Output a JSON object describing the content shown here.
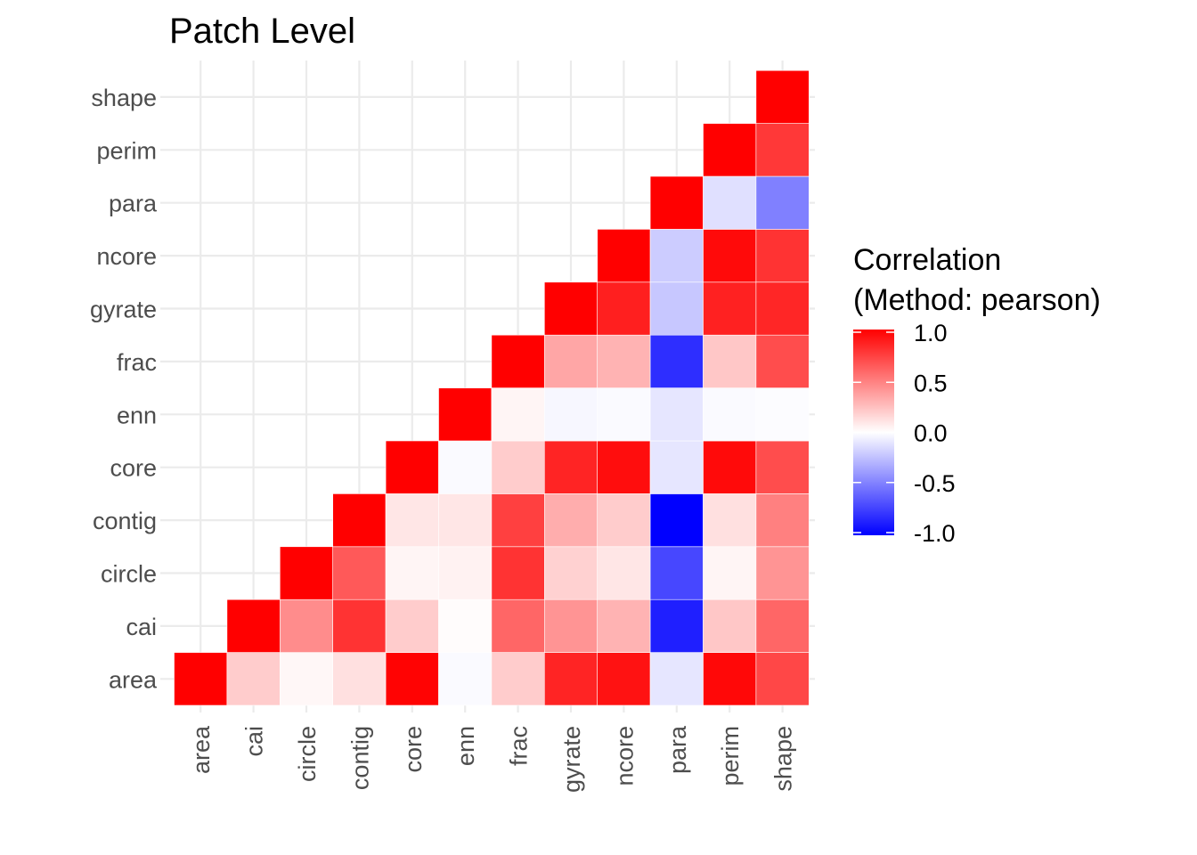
{
  "chart_data": {
    "type": "heatmap",
    "title": "Patch Level",
    "variables": [
      "area",
      "cai",
      "circle",
      "contig",
      "core",
      "enn",
      "frac",
      "gyrate",
      "ncore",
      "para",
      "perim",
      "shape"
    ],
    "x_categories": [
      "area",
      "cai",
      "circle",
      "contig",
      "core",
      "enn",
      "frac",
      "gyrate",
      "ncore",
      "para",
      "perim",
      "shape"
    ],
    "y_categories": [
      "area",
      "cai",
      "circle",
      "contig",
      "core",
      "enn",
      "frac",
      "gyrate",
      "ncore",
      "para",
      "perim",
      "shape"
    ],
    "triangle": "upper-left of diagonal shown (x >= y)",
    "cells": [
      {
        "x": "area",
        "y": "area",
        "value": 1.0
      },
      {
        "x": "cai",
        "y": "area",
        "value": 0.2
      },
      {
        "x": "circle",
        "y": "area",
        "value": 0.03
      },
      {
        "x": "contig",
        "y": "area",
        "value": 0.12
      },
      {
        "x": "core",
        "y": "area",
        "value": 0.99
      },
      {
        "x": "enn",
        "y": "area",
        "value": -0.02
      },
      {
        "x": "frac",
        "y": "area",
        "value": 0.2
      },
      {
        "x": "gyrate",
        "y": "area",
        "value": 0.86
      },
      {
        "x": "ncore",
        "y": "area",
        "value": 0.93
      },
      {
        "x": "para",
        "y": "area",
        "value": -0.1
      },
      {
        "x": "perim",
        "y": "area",
        "value": 0.97
      },
      {
        "x": "shape",
        "y": "area",
        "value": 0.72
      },
      {
        "x": "cai",
        "y": "cai",
        "value": 1.0
      },
      {
        "x": "circle",
        "y": "cai",
        "value": 0.45
      },
      {
        "x": "contig",
        "y": "cai",
        "value": 0.8
      },
      {
        "x": "core",
        "y": "cai",
        "value": 0.2
      },
      {
        "x": "enn",
        "y": "cai",
        "value": 0.01
      },
      {
        "x": "frac",
        "y": "cai",
        "value": 0.6
      },
      {
        "x": "gyrate",
        "y": "cai",
        "value": 0.42
      },
      {
        "x": "ncore",
        "y": "cai",
        "value": 0.3
      },
      {
        "x": "para",
        "y": "cai",
        "value": -0.88
      },
      {
        "x": "perim",
        "y": "cai",
        "value": 0.22
      },
      {
        "x": "shape",
        "y": "cai",
        "value": 0.6
      },
      {
        "x": "circle",
        "y": "circle",
        "value": 1.0
      },
      {
        "x": "contig",
        "y": "circle",
        "value": 0.65
      },
      {
        "x": "core",
        "y": "circle",
        "value": 0.04
      },
      {
        "x": "enn",
        "y": "circle",
        "value": 0.05
      },
      {
        "x": "frac",
        "y": "circle",
        "value": 0.8
      },
      {
        "x": "gyrate",
        "y": "circle",
        "value": 0.18
      },
      {
        "x": "ncore",
        "y": "circle",
        "value": 0.1
      },
      {
        "x": "para",
        "y": "circle",
        "value": -0.72
      },
      {
        "x": "perim",
        "y": "circle",
        "value": 0.04
      },
      {
        "x": "shape",
        "y": "circle",
        "value": 0.42
      },
      {
        "x": "contig",
        "y": "contig",
        "value": 1.0
      },
      {
        "x": "core",
        "y": "contig",
        "value": 0.1
      },
      {
        "x": "enn",
        "y": "contig",
        "value": 0.1
      },
      {
        "x": "frac",
        "y": "contig",
        "value": 0.75
      },
      {
        "x": "gyrate",
        "y": "contig",
        "value": 0.32
      },
      {
        "x": "ncore",
        "y": "contig",
        "value": 0.2
      },
      {
        "x": "para",
        "y": "contig",
        "value": -1.0
      },
      {
        "x": "perim",
        "y": "contig",
        "value": 0.12
      },
      {
        "x": "shape",
        "y": "contig",
        "value": 0.5
      },
      {
        "x": "core",
        "y": "core",
        "value": 1.0
      },
      {
        "x": "enn",
        "y": "core",
        "value": -0.02
      },
      {
        "x": "frac",
        "y": "core",
        "value": 0.2
      },
      {
        "x": "gyrate",
        "y": "core",
        "value": 0.86
      },
      {
        "x": "ncore",
        "y": "core",
        "value": 0.95
      },
      {
        "x": "para",
        "y": "core",
        "value": -0.1
      },
      {
        "x": "perim",
        "y": "core",
        "value": 0.96
      },
      {
        "x": "shape",
        "y": "core",
        "value": 0.7
      },
      {
        "x": "enn",
        "y": "enn",
        "value": 1.0
      },
      {
        "x": "frac",
        "y": "enn",
        "value": 0.04
      },
      {
        "x": "gyrate",
        "y": "enn",
        "value": -0.03
      },
      {
        "x": "ncore",
        "y": "enn",
        "value": -0.02
      },
      {
        "x": "para",
        "y": "enn",
        "value": -0.1
      },
      {
        "x": "perim",
        "y": "enn",
        "value": -0.02
      },
      {
        "x": "shape",
        "y": "enn",
        "value": -0.01
      },
      {
        "x": "frac",
        "y": "frac",
        "value": 1.0
      },
      {
        "x": "gyrate",
        "y": "frac",
        "value": 0.35
      },
      {
        "x": "ncore",
        "y": "frac",
        "value": 0.3
      },
      {
        "x": "para",
        "y": "frac",
        "value": -0.82
      },
      {
        "x": "perim",
        "y": "frac",
        "value": 0.22
      },
      {
        "x": "shape",
        "y": "frac",
        "value": 0.7
      },
      {
        "x": "gyrate",
        "y": "gyrate",
        "value": 1.0
      },
      {
        "x": "ncore",
        "y": "gyrate",
        "value": 0.88
      },
      {
        "x": "para",
        "y": "gyrate",
        "value": -0.22
      },
      {
        "x": "perim",
        "y": "gyrate",
        "value": 0.87
      },
      {
        "x": "shape",
        "y": "gyrate",
        "value": 0.85
      },
      {
        "x": "ncore",
        "y": "ncore",
        "value": 1.0
      },
      {
        "x": "para",
        "y": "ncore",
        "value": -0.2
      },
      {
        "x": "perim",
        "y": "ncore",
        "value": 0.96
      },
      {
        "x": "shape",
        "y": "ncore",
        "value": 0.8
      },
      {
        "x": "para",
        "y": "para",
        "value": 1.0
      },
      {
        "x": "perim",
        "y": "para",
        "value": -0.12
      },
      {
        "x": "shape",
        "y": "para",
        "value": -0.5
      },
      {
        "x": "perim",
        "y": "perim",
        "value": 1.0
      },
      {
        "x": "shape",
        "y": "perim",
        "value": 0.78
      },
      {
        "x": "shape",
        "y": "shape",
        "value": 1.0
      }
    ],
    "scale": {
      "low": -1.0,
      "mid": 0.0,
      "high": 1.0,
      "low_color": "#0000FF",
      "mid_color": "#FFFFFF",
      "high_color": "#FF0000"
    },
    "legend": {
      "title_line1": "Correlation",
      "title_line2": "(Method: pearson)",
      "ticks": [
        1.0,
        0.5,
        0.0,
        -0.5,
        -1.0
      ],
      "tick_labels": [
        "1.0",
        "0.5",
        "0.0",
        "-0.5",
        "-1.0"
      ],
      "position": "right"
    },
    "grid": true,
    "xlabel": "",
    "ylabel": ""
  },
  "colors": {
    "grid": "#EBEBEB",
    "axis_text": "#4D4D4D",
    "title_text": "#000000",
    "cell_border": "#FFFFFF"
  }
}
